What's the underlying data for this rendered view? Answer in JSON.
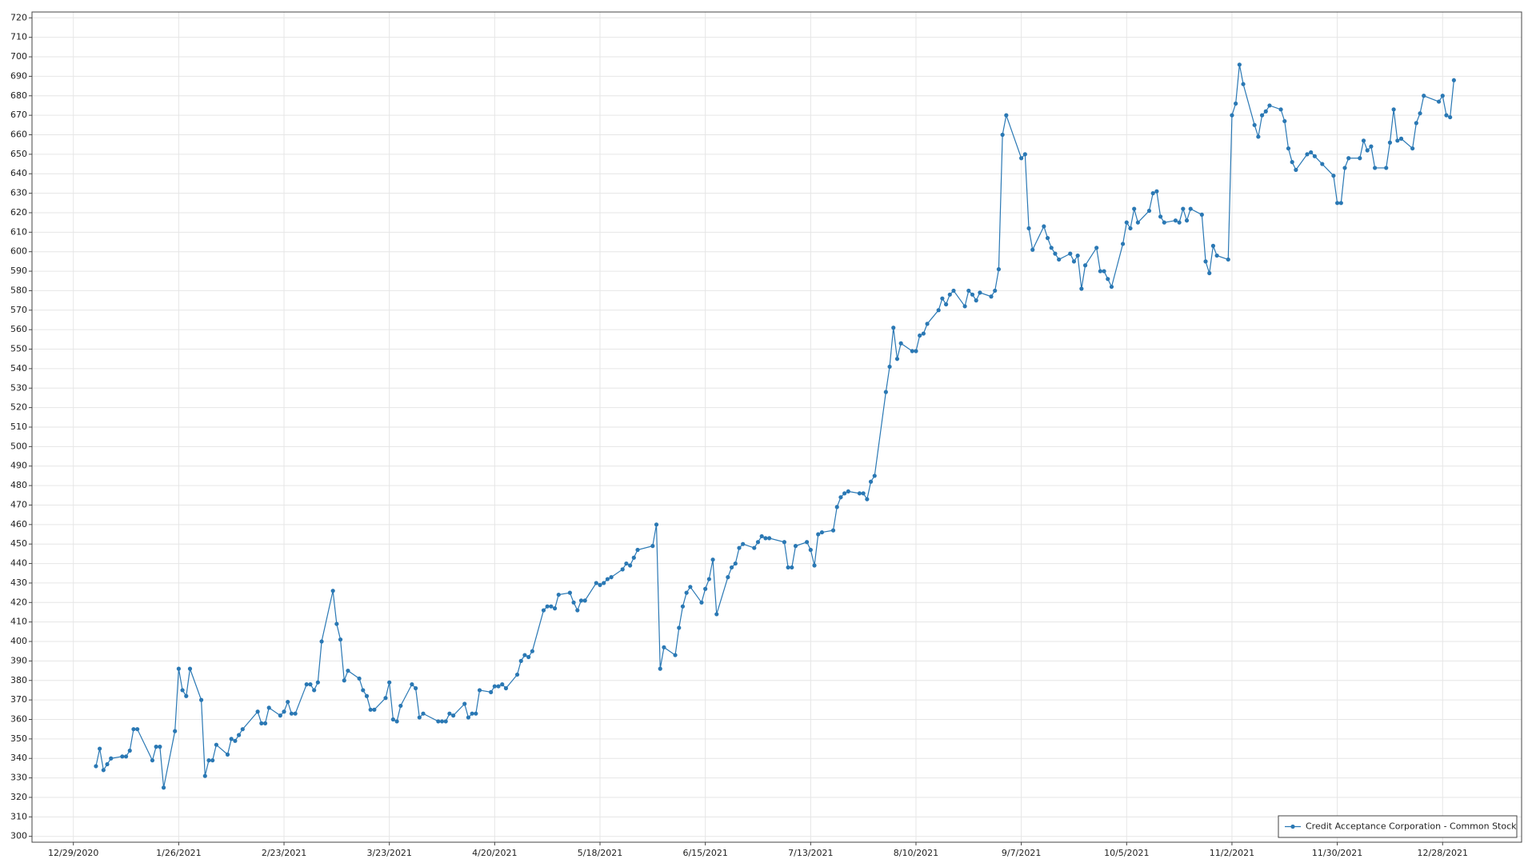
{
  "chart_data": {
    "type": "line",
    "x": [
      "1/4/2021",
      "1/5/2021",
      "1/6/2021",
      "1/7/2021",
      "1/8/2021",
      "1/11/2021",
      "1/12/2021",
      "1/13/2021",
      "1/14/2021",
      "1/15/2021",
      "1/19/2021",
      "1/20/2021",
      "1/21/2021",
      "1/22/2021",
      "1/25/2021",
      "1/26/2021",
      "1/27/2021",
      "1/28/2021",
      "1/29/2021",
      "2/1/2021",
      "2/2/2021",
      "2/3/2021",
      "2/4/2021",
      "2/5/2021",
      "2/8/2021",
      "2/9/2021",
      "2/10/2021",
      "2/11/2021",
      "2/12/2021",
      "2/16/2021",
      "2/17/2021",
      "2/18/2021",
      "2/19/2021",
      "2/22/2021",
      "2/23/2021",
      "2/24/2021",
      "2/25/2021",
      "2/26/2021",
      "3/1/2021",
      "3/2/2021",
      "3/3/2021",
      "3/4/2021",
      "3/5/2021",
      "3/8/2021",
      "3/9/2021",
      "3/10/2021",
      "3/11/2021",
      "3/12/2021",
      "3/15/2021",
      "3/16/2021",
      "3/17/2021",
      "3/18/2021",
      "3/19/2021",
      "3/22/2021",
      "3/23/2021",
      "3/24/2021",
      "3/25/2021",
      "3/26/2021",
      "3/29/2021",
      "3/30/2021",
      "3/31/2021",
      "4/1/2021",
      "4/5/2021",
      "4/6/2021",
      "4/7/2021",
      "4/8/2021",
      "4/9/2021",
      "4/12/2021",
      "4/13/2021",
      "4/14/2021",
      "4/15/2021",
      "4/16/2021",
      "4/19/2021",
      "4/20/2021",
      "4/21/2021",
      "4/22/2021",
      "4/23/2021",
      "4/26/2021",
      "4/27/2021",
      "4/28/2021",
      "4/29/2021",
      "4/30/2021",
      "5/3/2021",
      "5/4/2021",
      "5/5/2021",
      "5/6/2021",
      "5/7/2021",
      "5/10/2021",
      "5/11/2021",
      "5/12/2021",
      "5/13/2021",
      "5/14/2021",
      "5/17/2021",
      "5/18/2021",
      "5/19/2021",
      "5/20/2021",
      "5/21/2021",
      "5/24/2021",
      "5/25/2021",
      "5/26/2021",
      "5/27/2021",
      "5/28/2021",
      "6/1/2021",
      "6/2/2021",
      "6/3/2021",
      "6/4/2021",
      "6/7/2021",
      "6/8/2021",
      "6/9/2021",
      "6/10/2021",
      "6/11/2021",
      "6/14/2021",
      "6/15/2021",
      "6/16/2021",
      "6/17/2021",
      "6/18/2021",
      "6/21/2021",
      "6/22/2021",
      "6/23/2021",
      "6/24/2021",
      "6/25/2021",
      "6/28/2021",
      "6/29/2021",
      "6/30/2021",
      "7/1/2021",
      "7/2/2021",
      "7/6/2021",
      "7/7/2021",
      "7/8/2021",
      "7/9/2021",
      "7/12/2021",
      "7/13/2021",
      "7/14/2021",
      "7/15/2021",
      "7/16/2021",
      "7/19/2021",
      "7/20/2021",
      "7/21/2021",
      "7/22/2021",
      "7/23/2021",
      "7/26/2021",
      "7/27/2021",
      "7/28/2021",
      "7/29/2021",
      "7/30/2021",
      "8/2/2021",
      "8/3/2021",
      "8/4/2021",
      "8/5/2021",
      "8/6/2021",
      "8/9/2021",
      "8/10/2021",
      "8/11/2021",
      "8/12/2021",
      "8/13/2021",
      "8/16/2021",
      "8/17/2021",
      "8/18/2021",
      "8/19/2021",
      "8/20/2021",
      "8/23/2021",
      "8/24/2021",
      "8/25/2021",
      "8/26/2021",
      "8/27/2021",
      "8/30/2021",
      "8/31/2021",
      "9/1/2021",
      "9/2/2021",
      "9/3/2021",
      "9/7/2021",
      "9/8/2021",
      "9/9/2021",
      "9/10/2021",
      "9/13/2021",
      "9/14/2021",
      "9/15/2021",
      "9/16/2021",
      "9/17/2021",
      "9/20/2021",
      "9/21/2021",
      "9/22/2021",
      "9/23/2021",
      "9/24/2021",
      "9/27/2021",
      "9/28/2021",
      "9/29/2021",
      "9/30/2021",
      "10/1/2021",
      "10/4/2021",
      "10/5/2021",
      "10/6/2021",
      "10/7/2021",
      "10/8/2021",
      "10/11/2021",
      "10/12/2021",
      "10/13/2021",
      "10/14/2021",
      "10/15/2021",
      "10/18/2021",
      "10/19/2021",
      "10/20/2021",
      "10/21/2021",
      "10/22/2021",
      "10/25/2021",
      "10/26/2021",
      "10/27/2021",
      "10/28/2021",
      "10/29/2021",
      "11/1/2021",
      "11/2/2021",
      "11/3/2021",
      "11/4/2021",
      "11/5/2021",
      "11/8/2021",
      "11/9/2021",
      "11/10/2021",
      "11/11/2021",
      "11/12/2021",
      "11/15/2021",
      "11/16/2021",
      "11/17/2021",
      "11/18/2021",
      "11/19/2021",
      "11/22/2021",
      "11/23/2021",
      "11/24/2021",
      "11/26/2021",
      "11/29/2021",
      "11/30/2021",
      "12/1/2021",
      "12/2/2021",
      "12/3/2021",
      "12/6/2021",
      "12/7/2021",
      "12/8/2021",
      "12/9/2021",
      "12/10/2021",
      "12/13/2021",
      "12/14/2021",
      "12/15/2021",
      "12/16/2021",
      "12/17/2021",
      "12/20/2021",
      "12/21/2021",
      "12/22/2021",
      "12/23/2021",
      "12/27/2021",
      "12/28/2021",
      "12/29/2021",
      "12/30/2021",
      "12/31/2021"
    ],
    "series": [
      {
        "name": "Credit Acceptance Corporation - Common Stock",
        "color": "#2a78b4",
        "values": [
          336,
          345,
          334,
          337,
          340,
          341,
          341,
          344,
          355,
          355,
          339,
          346,
          346,
          325,
          354,
          386,
          375,
          372,
          386,
          370,
          331,
          339,
          339,
          347,
          342,
          350,
          349,
          352,
          355,
          364,
          358,
          358,
          366,
          362,
          364,
          369,
          363,
          363,
          378,
          378,
          375,
          379,
          400,
          426,
          409,
          401,
          380,
          385,
          381,
          375,
          372,
          365,
          365,
          371,
          379,
          360,
          359,
          367,
          378,
          376,
          361,
          363,
          359,
          359,
          359,
          363,
          362,
          368,
          361,
          363,
          363,
          375,
          374,
          377,
          377,
          378,
          376,
          383,
          390,
          393,
          392,
          395,
          416,
          418,
          418,
          417,
          424,
          425,
          420,
          416,
          421,
          421,
          430,
          429,
          430,
          432,
          433,
          437,
          440,
          439,
          443,
          447,
          449,
          460,
          386,
          397,
          393,
          407,
          418,
          425,
          428,
          420,
          427,
          432,
          442,
          414,
          433,
          438,
          440,
          448,
          450,
          448,
          451,
          454,
          453,
          453,
          451,
          438,
          438,
          449,
          451,
          447,
          439,
          455,
          456,
          457,
          469,
          474,
          476,
          477,
          476,
          476,
          473,
          482,
          485,
          528,
          541,
          561,
          545,
          553,
          549,
          549,
          557,
          558,
          563,
          570,
          576,
          573,
          578,
          580,
          572,
          580,
          578,
          575,
          579,
          577,
          580,
          591,
          660,
          670,
          648,
          650,
          612,
          601,
          613,
          607,
          602,
          599,
          596,
          599,
          595,
          598,
          581,
          593,
          602,
          590,
          590,
          586,
          582,
          604,
          615,
          612,
          622,
          615,
          621,
          630,
          631,
          618,
          615,
          616,
          615,
          622,
          616,
          622,
          619,
          595,
          589,
          603,
          598,
          596,
          670,
          676,
          696,
          686,
          665,
          659,
          670,
          672,
          675,
          673,
          667,
          653,
          646,
          642,
          650,
          651,
          649,
          645,
          639,
          625,
          625,
          643,
          648,
          648,
          657,
          652,
          654,
          643,
          643,
          656,
          673,
          657,
          658,
          653,
          666,
          671,
          680,
          677,
          680,
          670,
          669,
          688
        ]
      }
    ],
    "xlim": [
      "12/18/2020",
      "1/18/2022"
    ],
    "xticks": [
      "12/29/2020",
      "1/26/2021",
      "2/23/2021",
      "3/23/2021",
      "4/20/2021",
      "5/18/2021",
      "6/15/2021",
      "7/13/2021",
      "8/10/2021",
      "9/7/2021",
      "10/5/2021",
      "11/2/2021",
      "11/30/2021",
      "12/28/2021"
    ],
    "ylim": [
      297,
      723
    ],
    "yticks": [
      300,
      310,
      320,
      330,
      340,
      350,
      360,
      370,
      380,
      390,
      400,
      410,
      420,
      430,
      440,
      450,
      460,
      470,
      480,
      490,
      500,
      510,
      520,
      530,
      540,
      550,
      560,
      570,
      580,
      590,
      600,
      610,
      620,
      630,
      640,
      650,
      660,
      670,
      680,
      690,
      700,
      710,
      720
    ],
    "grid": true,
    "markers": true,
    "legend_position": "lower right"
  }
}
